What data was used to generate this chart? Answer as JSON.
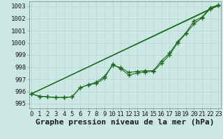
{
  "xlabel": "Graphe pression niveau de la mer (hPa)",
  "x": [
    0,
    1,
    2,
    3,
    4,
    5,
    6,
    7,
    8,
    9,
    10,
    11,
    12,
    13,
    14,
    15,
    16,
    17,
    18,
    19,
    20,
    21,
    22,
    23
  ],
  "line1": [
    995.8,
    995.6,
    995.55,
    995.5,
    995.5,
    995.55,
    996.3,
    996.55,
    996.65,
    997.1,
    998.25,
    997.85,
    997.35,
    997.5,
    997.6,
    997.65,
    998.3,
    999.0,
    1000.0,
    1000.75,
    1001.55,
    1002.05,
    1002.8,
    1003.05
  ],
  "line2": [
    995.8,
    995.6,
    995.55,
    995.5,
    995.5,
    995.55,
    996.3,
    996.55,
    996.75,
    997.25,
    998.15,
    997.95,
    997.55,
    997.65,
    997.7,
    997.7,
    998.5,
    999.15,
    1000.1,
    1000.8,
    1001.8,
    1002.1,
    1002.9,
    1003.1
  ],
  "trend1_x": [
    0,
    23
  ],
  "trend1_y": [
    995.8,
    1003.05
  ],
  "trend2_x": [
    0,
    23
  ],
  "trend2_y": [
    995.8,
    1003.1
  ],
  "line_color": "#1a6b1a",
  "bg_color": "#cce8e4",
  "grid_color": "#b8d4d0",
  "ylim": [
    994.6,
    1003.4
  ],
  "xlim": [
    -0.3,
    23.3
  ],
  "yticks": [
    995,
    996,
    997,
    998,
    999,
    1000,
    1001,
    1002,
    1003
  ],
  "xticks": [
    0,
    1,
    2,
    3,
    4,
    5,
    6,
    7,
    8,
    9,
    10,
    11,
    12,
    13,
    14,
    15,
    16,
    17,
    18,
    19,
    20,
    21,
    22,
    23
  ],
  "xlabel_fontsize": 8,
  "tick_fontsize": 6.5,
  "marker": "P",
  "marker_size": 2.5
}
